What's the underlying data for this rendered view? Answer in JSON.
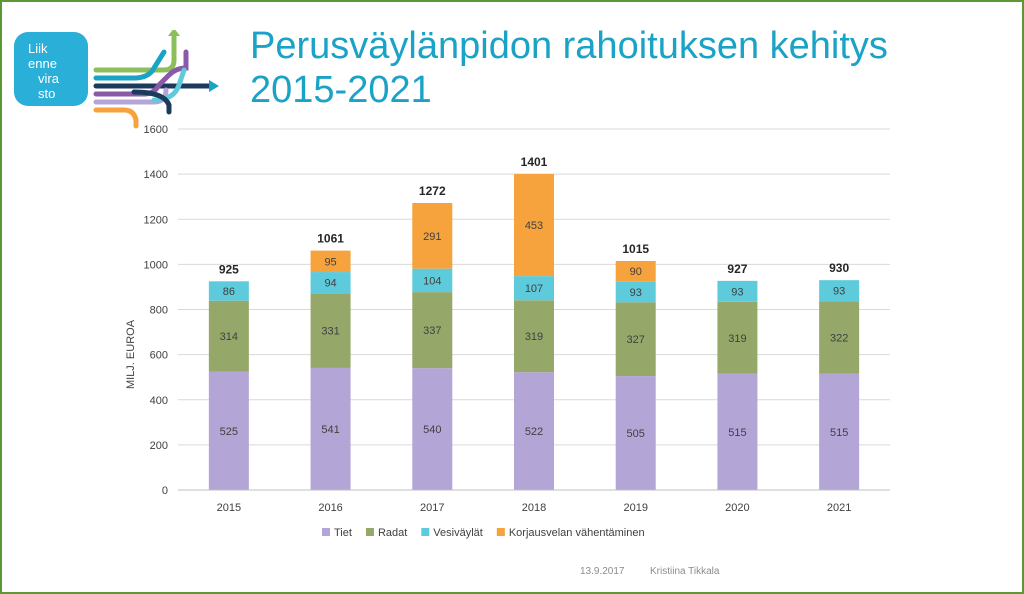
{
  "title_line1": "Perusväylänpidon rahoituksen kehitys",
  "title_line2": "2015-2021",
  "logo": {
    "line1": "Liik",
    "line2": "enne",
    "line3": "vira",
    "line4": "sto"
  },
  "footer": {
    "date": "13.9.2017",
    "author": "Kristiina Tikkala"
  },
  "colors": {
    "title": "#1aa3c6",
    "frame": "#5b9a32",
    "logo_bg": "#2ab0d8"
  },
  "chart_data": {
    "type": "bar",
    "stacked": true,
    "categories": [
      "2015",
      "2016",
      "2017",
      "2018",
      "2019",
      "2020",
      "2021"
    ],
    "series": [
      {
        "name": "Tiet",
        "color": "#b3a5d6",
        "values": [
          525,
          541,
          540,
          522,
          505,
          515,
          515
        ]
      },
      {
        "name": "Radat",
        "color": "#95a86a",
        "values": [
          314,
          331,
          337,
          319,
          327,
          319,
          322
        ]
      },
      {
        "name": "Vesiväylät",
        "color": "#5ecbdc",
        "values": [
          86,
          94,
          104,
          107,
          93,
          93,
          93
        ]
      },
      {
        "name": "Korjausvelan vähentäminen",
        "color": "#f6a33e",
        "values": [
          null,
          95,
          291,
          453,
          90,
          null,
          null
        ]
      }
    ],
    "totals": [
      925,
      1061,
      1272,
      1401,
      1015,
      927,
      930
    ],
    "ylabel": "MILJ. EUROA",
    "ylim": [
      0,
      1600
    ],
    "yticks": [
      0,
      200,
      400,
      600,
      800,
      1000,
      1200,
      1400,
      1600
    ],
    "grid": true,
    "legend": "bottom"
  }
}
